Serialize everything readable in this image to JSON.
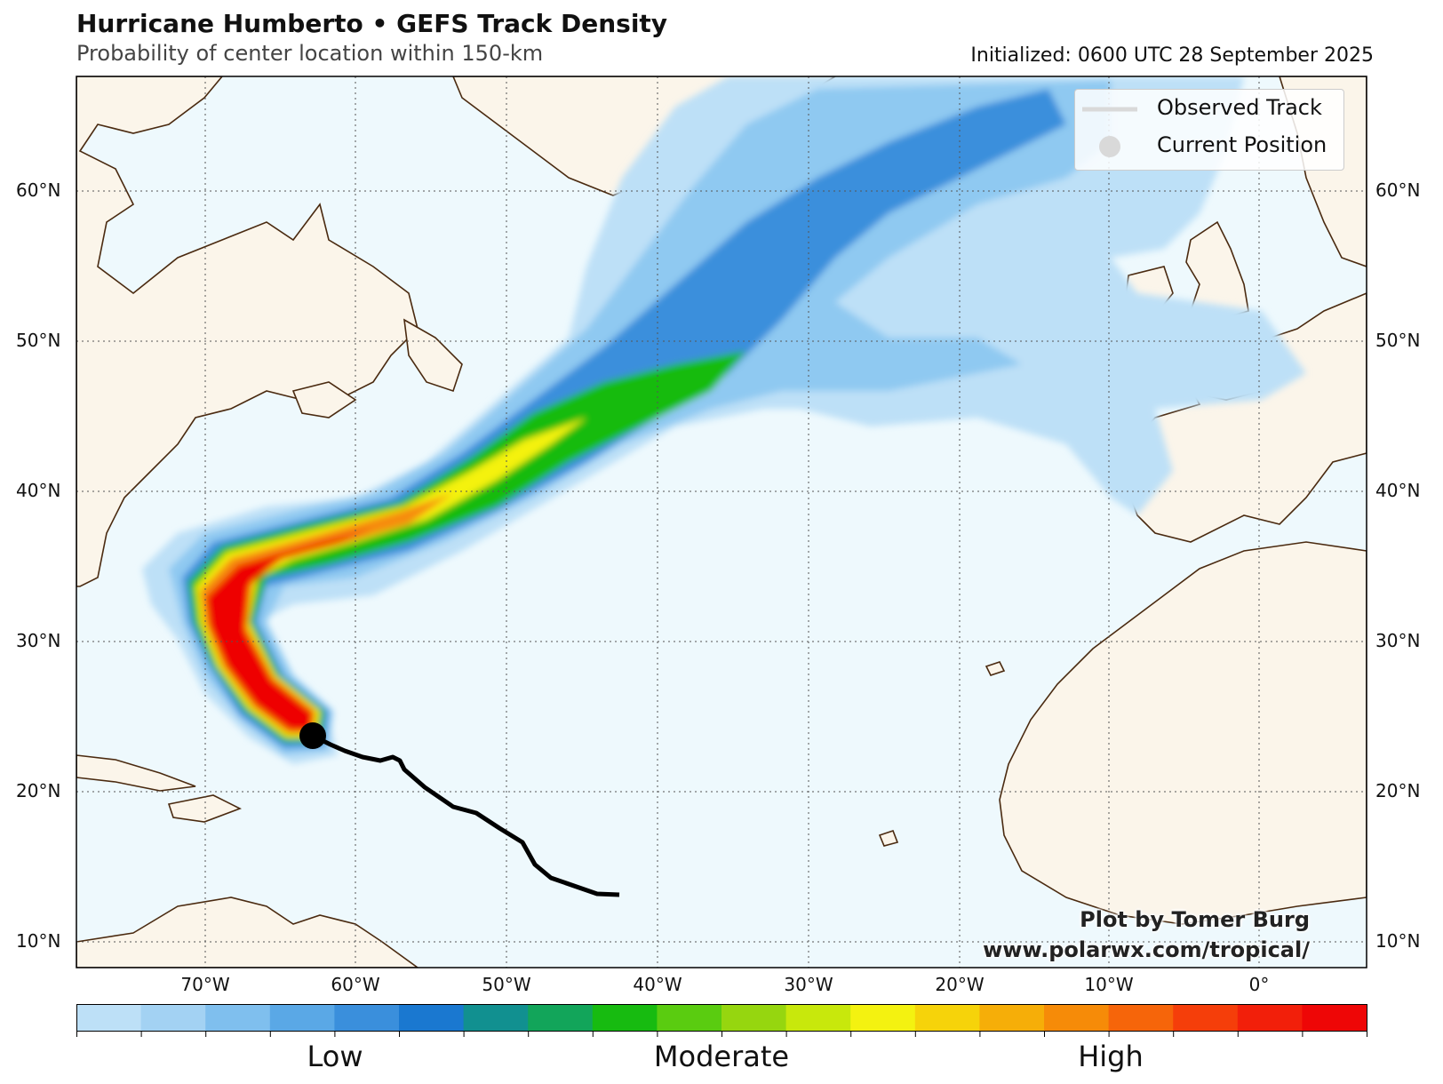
{
  "title": "Hurricane Humberto • GEFS Track Density",
  "subtitle": "Probability of center location within 150-km",
  "initialized": "Initialized: 0600 UTC 28 September 2025",
  "lat_labels": [
    "60°N",
    "50°N",
    "40°N",
    "30°N",
    "20°N",
    "10°N"
  ],
  "lon_labels": [
    "70°W",
    "60°W",
    "50°W",
    "40°W",
    "30°W",
    "20°W",
    "10°W",
    "0°"
  ],
  "legend": {
    "observed_track": "Observed Track",
    "current_position": "Current Position"
  },
  "credit": {
    "line1": "Plot by Tomer Burg",
    "line2": "www.polarwx.com/tropical/"
  },
  "colorbar": {
    "low": "Low",
    "moderate": "Moderate",
    "high": "High",
    "colors": [
      "#bde0f7",
      "#a3d2f3",
      "#7fbfee",
      "#5aa8e6",
      "#3a8fdc",
      "#1a78d0",
      "#119090",
      "#12a55a",
      "#17bb10",
      "#5acc10",
      "#96d60f",
      "#c8e80c",
      "#f4f210",
      "#f6d30a",
      "#f6ae08",
      "#f68b08",
      "#f6650a",
      "#f53e0a",
      "#f21f0a",
      "#ee0606"
    ]
  },
  "colors": {
    "ocean": "#eef9fd",
    "land": "#fbf5ea",
    "coast": "#4a2a10",
    "track": "#000000"
  }
}
